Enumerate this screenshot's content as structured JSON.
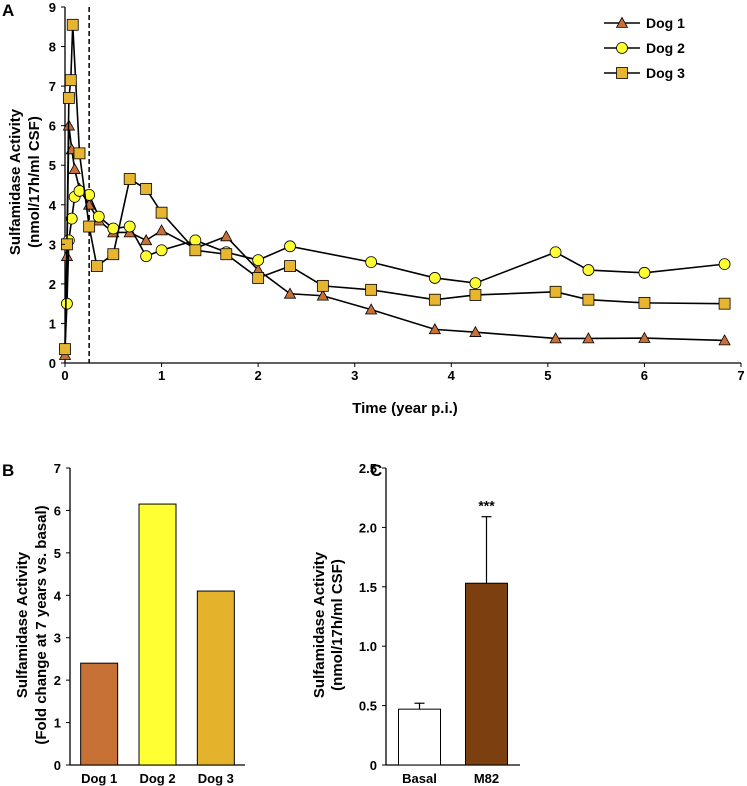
{
  "panels": {
    "a": "A",
    "b": "B",
    "c": "C"
  },
  "colors": {
    "dog1": "#c8703a",
    "dog2": "#ffff33",
    "dog3": "#e8b530",
    "bar_dog1": "#c87137",
    "bar_dog2": "#ffff33",
    "bar_dog3": "#e5b22b",
    "basal": "#ffffff",
    "m82": "#7b3f10",
    "line": "#000000"
  },
  "chart_data": [
    {
      "id": "A",
      "type": "line",
      "title": "",
      "xlabel": "Time (year p.i.)",
      "ylabel": [
        "Sulfamidase Activity",
        "(nmol/17h/ml CSF)"
      ],
      "xlim": [
        0,
        7
      ],
      "ylim": [
        0,
        9
      ],
      "xticks": [
        0,
        1,
        2,
        3,
        4,
        5,
        6,
        7
      ],
      "yticks": [
        0,
        1,
        2,
        3,
        4,
        5,
        6,
        7,
        8,
        9
      ],
      "vline_x": 0.25,
      "legend_position": "top-right",
      "series": [
        {
          "name": "Dog 1",
          "marker": "triangle",
          "x": [
            0,
            0.02,
            0.04,
            0.07,
            0.1,
            0.15,
            0.25,
            0.35,
            0.5,
            0.67,
            0.84,
            1.0,
            1.35,
            1.67,
            2.0,
            2.33,
            2.67,
            3.17,
            3.83,
            4.25,
            5.08,
            5.42,
            6.0,
            6.83
          ],
          "y": [
            0.2,
            2.7,
            6.0,
            5.4,
            4.9,
            4.4,
            4.0,
            3.6,
            3.3,
            3.3,
            3.1,
            3.35,
            2.9,
            3.2,
            2.35,
            1.75,
            1.7,
            1.35,
            0.85,
            0.78,
            0.62,
            0.62,
            0.63,
            0.57
          ]
        },
        {
          "name": "Dog 2",
          "marker": "circle",
          "x": [
            0,
            0.02,
            0.04,
            0.07,
            0.1,
            0.15,
            0.25,
            0.35,
            0.5,
            0.67,
            0.84,
            1.0,
            1.35,
            1.67,
            2.0,
            2.33,
            3.17,
            3.83,
            4.25,
            5.08,
            5.42,
            6.0,
            6.83
          ],
          "y": [
            0.35,
            1.5,
            3.1,
            3.65,
            4.2,
            4.35,
            4.25,
            3.7,
            3.4,
            3.45,
            2.7,
            2.85,
            3.1,
            2.8,
            2.6,
            2.95,
            2.55,
            2.15,
            2.02,
            2.8,
            2.35,
            2.28,
            2.5
          ]
        },
        {
          "name": "Dog 3",
          "marker": "square",
          "x": [
            0,
            0.02,
            0.04,
            0.06,
            0.08,
            0.15,
            0.25,
            0.33,
            0.5,
            0.67,
            0.84,
            1.0,
            1.35,
            1.67,
            2.0,
            2.33,
            2.67,
            3.17,
            3.83,
            4.25,
            5.08,
            5.42,
            6.0,
            6.83
          ],
          "y": [
            0.35,
            3.0,
            6.7,
            7.15,
            8.55,
            5.3,
            3.45,
            2.45,
            2.75,
            4.65,
            4.4,
            3.8,
            2.85,
            2.75,
            2.15,
            2.45,
            1.95,
            1.85,
            1.6,
            1.72,
            1.8,
            1.6,
            1.52,
            1.5
          ]
        }
      ]
    },
    {
      "id": "B",
      "type": "bar",
      "categories": [
        "Dog 1",
        "Dog 2",
        "Dog 3"
      ],
      "values": [
        2.4,
        6.15,
        4.1
      ],
      "xlabel": "",
      "ylabel": [
        "Sulfamidase Activity",
        "(Fold change at 7 years vs. basal)"
      ],
      "ylim": [
        0,
        7
      ],
      "yticks": [
        0,
        1,
        2,
        3,
        4,
        5,
        6,
        7
      ]
    },
    {
      "id": "C",
      "type": "bar",
      "categories": [
        "Basal",
        "M82"
      ],
      "values": [
        0.47,
        1.53
      ],
      "errors": [
        0.05,
        0.56
      ],
      "significance": [
        "",
        "***"
      ],
      "xlabel": "",
      "ylabel": [
        "Sulfamidase Activity",
        "(nmol/17h/ml CSF)"
      ],
      "ylim": [
        0,
        2.5
      ],
      "yticks": [
        "0",
        "0.5",
        "1.0",
        "1.5",
        "2.0",
        "2.5"
      ]
    }
  ]
}
